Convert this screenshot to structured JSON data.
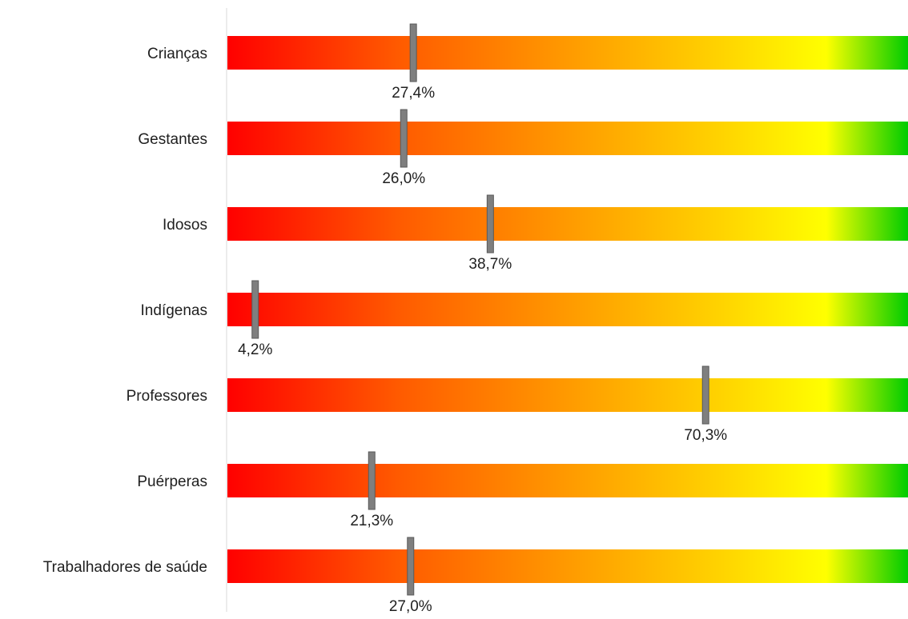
{
  "chart_data": {
    "type": "bar",
    "orientation": "horizontal",
    "categories": [
      "Crianças",
      "Gestantes",
      "Idosos",
      "Indígenas",
      "Professores",
      "Puérperas",
      "Trabalhadores de saúde"
    ],
    "values": [
      27.4,
      26.0,
      38.7,
      4.2,
      70.3,
      21.3,
      27.0
    ],
    "value_labels": [
      "27,4%",
      "26,0%",
      "38,7%",
      "4,2%",
      "70,3%",
      "21,3%",
      "27,0%"
    ],
    "xlim": [
      0,
      100
    ],
    "unit": "%",
    "grid": false,
    "legend": "none",
    "title": "",
    "xlabel": "",
    "ylabel": "",
    "colors": {
      "gradient_stops": [
        "#ff0000",
        "#ff5a00",
        "#ff9a00",
        "#ffd200",
        "#ffff00",
        "#00cc00"
      ],
      "marker": "#7f7f7f",
      "marker_border": "#5a5a5a",
      "axis_line": "#d9d9d9"
    }
  }
}
